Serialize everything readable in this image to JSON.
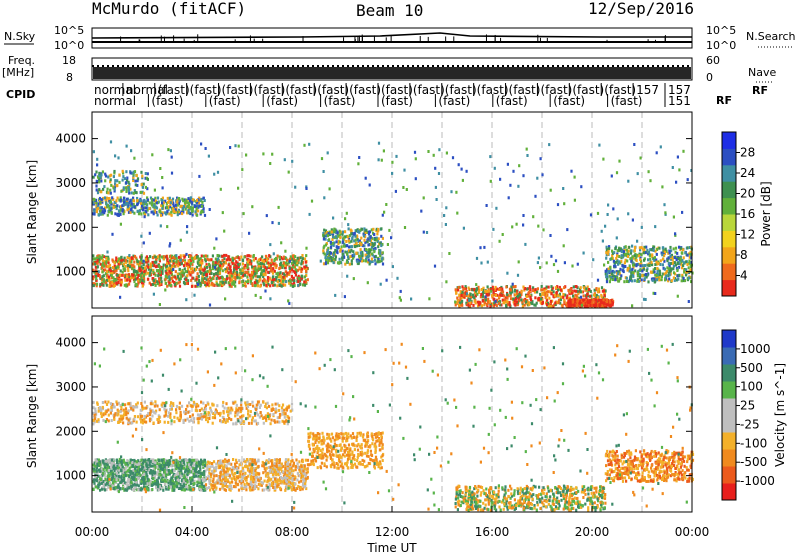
{
  "header": {
    "station": "McMurdo (fitACF)",
    "beam": "Beam 10",
    "date": "12/Sep/2016"
  },
  "side_labels": {
    "nsky": "N.Sky",
    "nsearch": "N.Search",
    "freq": "Freq.",
    "freq_unit": "[MHz]",
    "nave": "Nave",
    "cpid": "CPID",
    "rf1": "RF",
    "rf2": "RF"
  },
  "noise_panel": {
    "left_ticks": [
      "10^5",
      "10^0"
    ],
    "right_ticks": [
      "10^5",
      "10^0"
    ]
  },
  "freq_panel": {
    "left_ticks": [
      "18",
      "8"
    ],
    "right_ticks": [
      "60",
      "0"
    ]
  },
  "cpid_rows": {
    "row1": [
      "normal",
      "normal",
      "(fast)",
      "(fast)",
      "(fast)",
      "(fast)",
      "(fast)",
      "(fast)",
      "(fast)",
      "(fast)",
      "(fast)",
      "(fast)",
      "(fast)",
      "(fast)",
      "(fast)",
      "(fast)",
      "(fast)",
      "157",
      "157"
    ],
    "row2": [
      "normal",
      "(fast)",
      "(fast)",
      "(fast)",
      "(fast)",
      "(fast)",
      "(fast)",
      "(fast)",
      "(fast)",
      "(fast)",
      "151"
    ]
  },
  "chart_data": [
    {
      "type": "heatmap",
      "panel": "power",
      "ylabel": "Slant Range [km]",
      "y_ticks": [
        1000,
        2000,
        3000,
        4000
      ],
      "ylim": [
        180,
        4600
      ],
      "xlim": [
        0,
        24
      ],
      "colorbar_label": "Power [dB]",
      "colorbar_ticks": [
        "4",
        "8",
        "12",
        "16",
        "20",
        "24",
        "28"
      ],
      "colorbar_colors": [
        "#1e2ee6",
        "#2c4fc2",
        "#3f8fa3",
        "#3e9050",
        "#61b03a",
        "#b9d63a",
        "#f2d21e",
        "#f2a51b",
        "#ef6a1d",
        "#e82a1c"
      ]
    },
    {
      "type": "heatmap",
      "panel": "velocity",
      "xlabel": "Time UT",
      "ylabel": "Slant Range [km]",
      "x_ticks": [
        "00:00",
        "04:00",
        "08:00",
        "12:00",
        "16:00",
        "20:00",
        "00:00"
      ],
      "y_ticks": [
        1000,
        2000,
        3000,
        4000
      ],
      "ylim": [
        180,
        4600
      ],
      "xlim": [
        0,
        24
      ],
      "colorbar_label": "Velocity [m s^-1]",
      "colorbar_ticks": [
        "1000",
        "500",
        "100",
        "25",
        "-25",
        "-100",
        "-500",
        "-1000"
      ],
      "colorbar_colors": [
        "#1f39c9",
        "#3a6bb4",
        "#3c8a6a",
        "#58b44a",
        "#bfbfbf",
        "#bfbfbf",
        "#f3b02a",
        "#f08a1e",
        "#ec5a1c",
        "#e81f1c"
      ]
    }
  ]
}
